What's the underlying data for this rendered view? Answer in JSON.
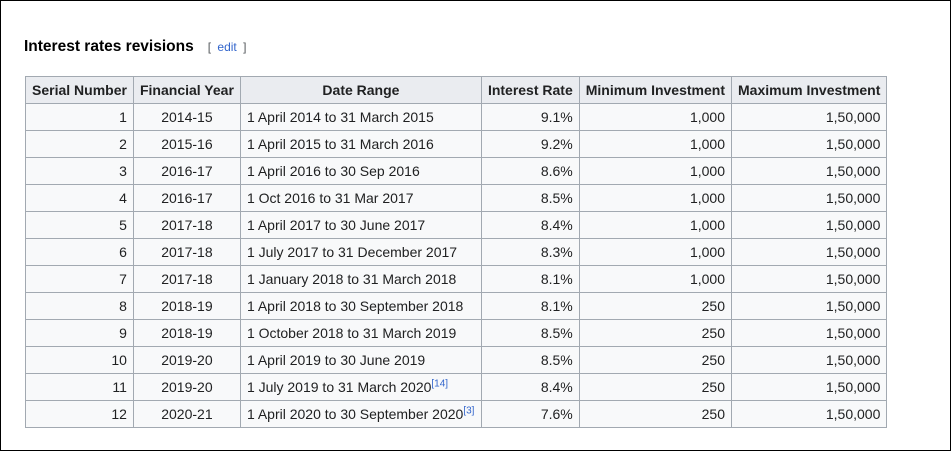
{
  "section": {
    "title": "Interest rates revisions",
    "edit_open": "[",
    "edit_label": "edit",
    "edit_close": "]"
  },
  "table": {
    "headers": [
      "Serial Number",
      "Financial Year",
      "Date Range",
      "Interest Rate",
      "Minimum Investment",
      "Maximum Investment"
    ],
    "rows": [
      {
        "serial": "1",
        "year": "2014-15",
        "range": "1 April 2014 to 31 March 2015",
        "ref": "",
        "rate": "9.1%",
        "min": "1,000",
        "max": "1,50,000"
      },
      {
        "serial": "2",
        "year": "2015-16",
        "range": "1 April 2015 to 31 March 2016",
        "ref": "",
        "rate": "9.2%",
        "min": "1,000",
        "max": "1,50,000"
      },
      {
        "serial": "3",
        "year": "2016-17",
        "range": "1 April 2016 to 30 Sep 2016",
        "ref": "",
        "rate": "8.6%",
        "min": "1,000",
        "max": "1,50,000"
      },
      {
        "serial": "4",
        "year": "2016-17",
        "range": "1 Oct 2016 to 31 Mar 2017",
        "ref": "",
        "rate": "8.5%",
        "min": "1,000",
        "max": "1,50,000"
      },
      {
        "serial": "5",
        "year": "2017-18",
        "range": "1 April 2017 to 30 June 2017",
        "ref": "",
        "rate": "8.4%",
        "min": "1,000",
        "max": "1,50,000"
      },
      {
        "serial": "6",
        "year": "2017-18",
        "range": "1 July 2017 to 31 December 2017",
        "ref": "",
        "rate": "8.3%",
        "min": "1,000",
        "max": "1,50,000"
      },
      {
        "serial": "7",
        "year": "2017-18",
        "range": "1 January 2018 to 31 March 2018",
        "ref": "",
        "rate": "8.1%",
        "min": "1,000",
        "max": "1,50,000"
      },
      {
        "serial": "8",
        "year": "2018-19",
        "range": "1 April 2018 to 30 September 2018",
        "ref": "",
        "rate": "8.1%",
        "min": "250",
        "max": "1,50,000"
      },
      {
        "serial": "9",
        "year": "2018-19",
        "range": "1 October 2018 to 31 March 2019",
        "ref": "",
        "rate": "8.5%",
        "min": "250",
        "max": "1,50,000"
      },
      {
        "serial": "10",
        "year": "2019-20",
        "range": "1 April 2019 to 30 June 2019",
        "ref": "",
        "rate": "8.5%",
        "min": "250",
        "max": "1,50,000"
      },
      {
        "serial": "11",
        "year": "2019-20",
        "range": "1 July 2019 to 31 March 2020",
        "ref": "[14]",
        "rate": "8.4%",
        "min": "250",
        "max": "1,50,000"
      },
      {
        "serial": "12",
        "year": "2020-21",
        "range": "1 April 2020 to 30 September 2020",
        "ref": "[3]",
        "rate": "7.6%",
        "min": "250",
        "max": "1,50,000"
      }
    ]
  },
  "colors": {
    "link": "#3366cc",
    "table_background": "#f8f9fa",
    "header_background": "#eaecf0",
    "border": "#a2a9b1"
  }
}
